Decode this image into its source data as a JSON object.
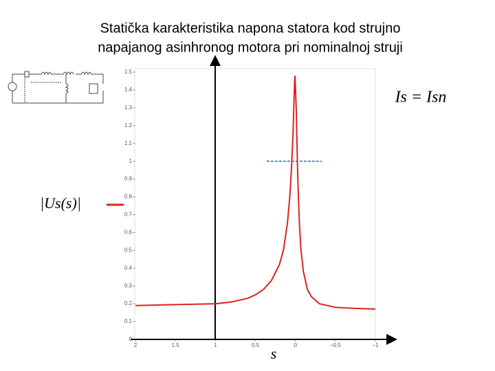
{
  "chart_data": {
    "type": "line",
    "title": "Statička karakteristika napona statora kod strujno",
    "subtitle": "napajanog asinhronog motora pri nominalnoj struji",
    "annotation": "Is = Isn",
    "x_label": "s",
    "x": [
      2,
      1.5,
      1,
      0.8,
      0.6,
      0.5,
      0.4,
      0.3,
      0.2,
      0.15,
      0.1,
      0.07,
      0.05,
      0.03,
      0.02,
      0.01,
      0.005,
      0,
      -0.01,
      -0.02,
      -0.03,
      -0.05,
      -0.07,
      -0.1,
      -0.15,
      -0.2,
      -0.3,
      -0.5,
      -0.7,
      -1
    ],
    "series": [
      {
        "name": "|Us(s)|",
        "color": "#e02020",
        "values": [
          0.19,
          0.195,
          0.2,
          0.21,
          0.23,
          0.25,
          0.28,
          0.33,
          0.42,
          0.5,
          0.65,
          0.8,
          0.95,
          1.15,
          1.3,
          1.45,
          1.48,
          1.42,
          1.3,
          1.1,
          0.9,
          0.65,
          0.5,
          0.38,
          0.28,
          0.24,
          0.2,
          0.18,
          0.175,
          0.17
        ]
      }
    ],
    "reference_line": {
      "y": 1,
      "x": [
        0.36,
        -0.33
      ],
      "color": "#2060c0"
    },
    "xlim": [
      2,
      -1
    ],
    "xticks": [
      2,
      1.5,
      1,
      0.5,
      0,
      {
        "value": -0.5,
        "label": "−0.5"
      },
      {
        "value": -1,
        "label": "−1"
      }
    ],
    "ylim": [
      0,
      1.5
    ],
    "yticks": [
      0,
      0.1,
      0.2,
      0.3,
      0.4,
      0.5,
      0.6,
      0.7,
      0.8,
      0.9,
      1,
      1.1,
      1.2,
      1.3,
      1.4,
      1.5
    ],
    "grid": false
  }
}
